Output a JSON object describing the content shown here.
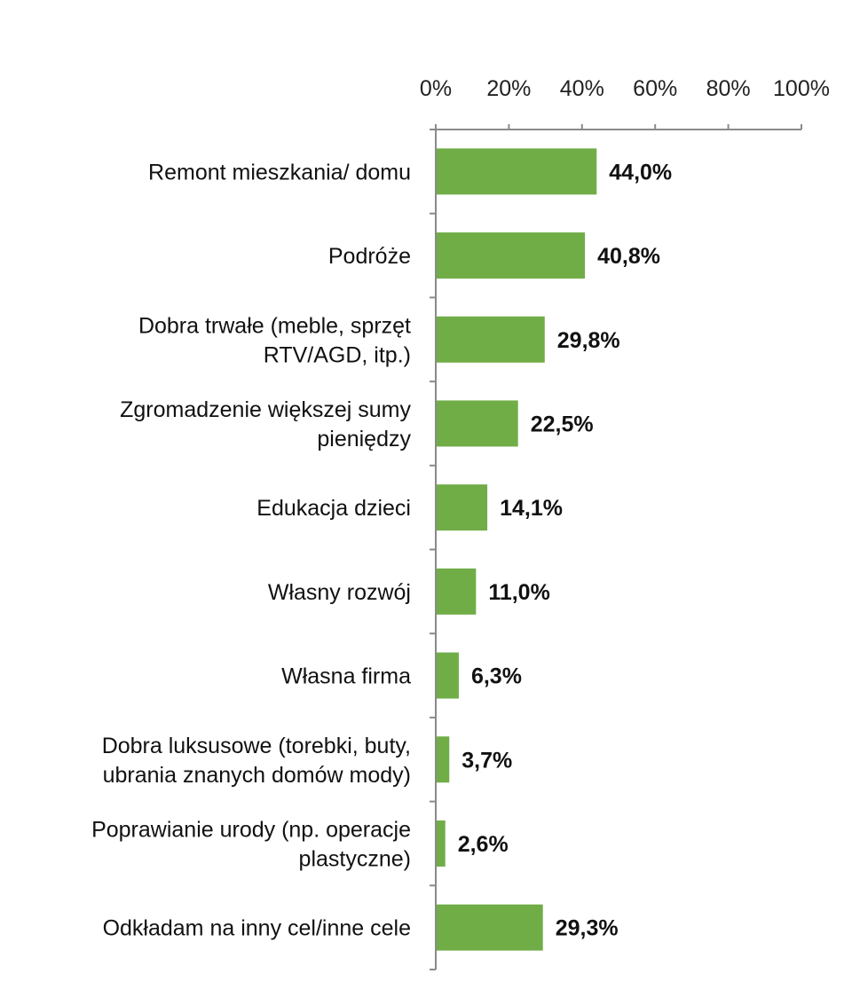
{
  "chart_data": {
    "type": "bar",
    "orientation": "horizontal",
    "title": "",
    "xlabel": "",
    "ylabel": "",
    "xlim": [
      0,
      100
    ],
    "x_ticks": [
      "0%",
      "20%",
      "40%",
      "60%",
      "80%",
      "100%"
    ],
    "x_tick_values": [
      0,
      20,
      40,
      60,
      80,
      100
    ],
    "x_axis_position": "top",
    "grid": false,
    "legend": "none",
    "bar_color": "#70ad47",
    "categories": [
      "Remont mieszkania/ domu",
      "Podróże",
      "Dobra trwałe (meble, sprzęt RTV/AGD, itp.)",
      "Zgromadzenie większej sumy pieniędzy",
      "Edukacja dzieci",
      "Własny rozwój",
      "Własna firma",
      "Dobra luksusowe (torebki, buty, ubrania znanych domów mody)",
      "Poprawianie urody (np. operacje plastyczne)",
      "Odkładam na inny cel/inne cele"
    ],
    "category_lines": [
      [
        "Remont mieszkania/ domu"
      ],
      [
        "Podróże"
      ],
      [
        "Dobra trwałe (meble, sprzęt",
        "RTV/AGD, itp.)"
      ],
      [
        "Zgromadzenie większej sumy",
        "pieniędzy"
      ],
      [
        "Edukacja dzieci"
      ],
      [
        "Własny rozwój"
      ],
      [
        "Własna firma"
      ],
      [
        "Dobra luksusowe (torebki, buty,",
        "ubrania znanych domów mody)"
      ],
      [
        "Poprawianie urody (np. operacje",
        "plastyczne)"
      ],
      [
        "Odkładam na inny cel/inne cele"
      ]
    ],
    "values": [
      44.0,
      40.8,
      29.8,
      22.5,
      14.1,
      11.0,
      6.3,
      3.7,
      2.6,
      29.3
    ],
    "data_labels": [
      "44,0%",
      "40,8%",
      "29,8%",
      "22,5%",
      "14,1%",
      "11,0%",
      "6,3%",
      "3,7%",
      "2,6%",
      "29,3%"
    ]
  }
}
